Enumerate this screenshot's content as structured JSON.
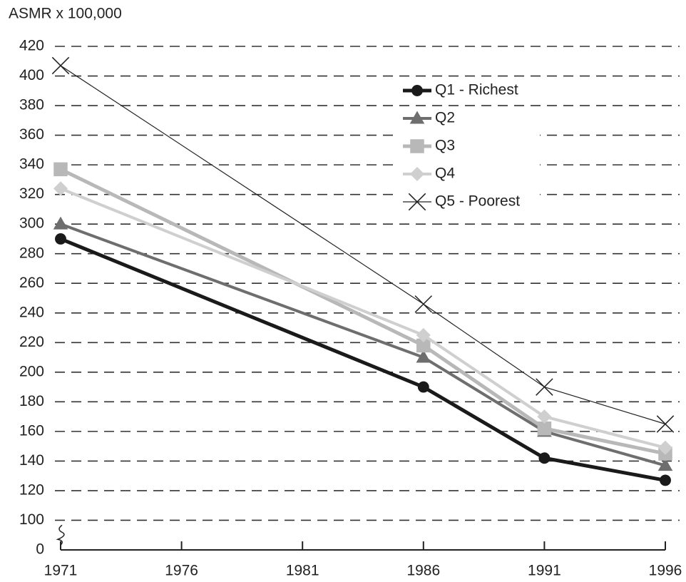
{
  "chart_data": {
    "type": "line",
    "y_label": "ASMR x 100,000",
    "x": [
      1971,
      1986,
      1991,
      1996
    ],
    "xlim": [
      1971,
      1996
    ],
    "xticks": [
      1971,
      1976,
      1981,
      1986,
      1991,
      1996
    ],
    "ylim": [
      0,
      420
    ],
    "yticks": [
      0,
      100,
      120,
      140,
      160,
      180,
      200,
      220,
      240,
      260,
      280,
      300,
      320,
      340,
      360,
      380,
      400,
      420
    ],
    "y_axis_break": true,
    "grid": true,
    "legend": "upper-right",
    "series": [
      {
        "name": "Q1 - Richest",
        "color": "#1a1a1a",
        "marker": "circle",
        "values": [
          290,
          190,
          142,
          127
        ]
      },
      {
        "name": "Q2",
        "color": "#6e6e6e",
        "marker": "triangle",
        "values": [
          300,
          210,
          160,
          137
        ]
      },
      {
        "name": "Q3",
        "color": "#b8b8b8",
        "marker": "square",
        "values": [
          337,
          218,
          162,
          145
        ]
      },
      {
        "name": "Q4",
        "color": "#cfcfcf",
        "marker": "diamond",
        "values": [
          324,
          225,
          170,
          149
        ]
      },
      {
        "name": "Q5 - Poorest",
        "color": "#222222",
        "marker": "x",
        "values": [
          407,
          246,
          190,
          165
        ]
      }
    ]
  }
}
